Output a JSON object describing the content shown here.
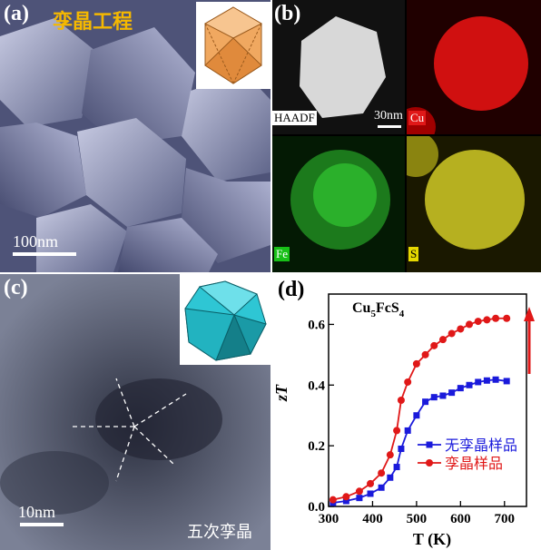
{
  "panel_a": {
    "label": "(a)",
    "title": "孪晶工程",
    "scalebar": "100nm"
  },
  "panel_b": {
    "label": "(b)",
    "haadf": "HAADF",
    "scalebar": "30nm",
    "cu": "Cu",
    "fe": "Fe",
    "s": "S"
  },
  "panel_c": {
    "label": "(c)",
    "scalebar": "10nm",
    "caption": "五次孪晶"
  },
  "panel_d": {
    "label": "(d)",
    "formula_main": "Cu",
    "formula_sub1": "5",
    "formula_mid": "FcS",
    "formula_sub2": "4"
  },
  "chart_data": {
    "type": "line",
    "xlabel": "T (K)",
    "ylabel": "zT",
    "xlim": [
      300,
      750
    ],
    "ylim": [
      0,
      0.7
    ],
    "xticks": [
      300,
      400,
      500,
      600,
      700
    ],
    "yticks": [
      0.0,
      0.2,
      0.4,
      0.6
    ],
    "x": [
      310,
      340,
      370,
      395,
      420,
      440,
      455,
      465,
      480,
      500,
      520,
      540,
      560,
      580,
      600,
      620,
      640,
      660,
      680,
      705
    ],
    "series": [
      {
        "name": "无孪晶样品",
        "color": "#1a1adb",
        "marker": "square",
        "values": [
          0.012,
          0.018,
          0.028,
          0.042,
          0.062,
          0.095,
          0.13,
          0.19,
          0.25,
          0.3,
          0.345,
          0.36,
          0.365,
          0.375,
          0.39,
          0.4,
          0.41,
          0.415,
          0.418,
          0.413
        ]
      },
      {
        "name": "孪晶样品",
        "color": "#e01818",
        "marker": "circle",
        "values": [
          0.022,
          0.032,
          0.05,
          0.075,
          0.11,
          0.17,
          0.25,
          0.35,
          0.41,
          0.47,
          0.5,
          0.53,
          0.55,
          0.57,
          0.585,
          0.6,
          0.61,
          0.615,
          0.62,
          0.62
        ]
      }
    ]
  }
}
